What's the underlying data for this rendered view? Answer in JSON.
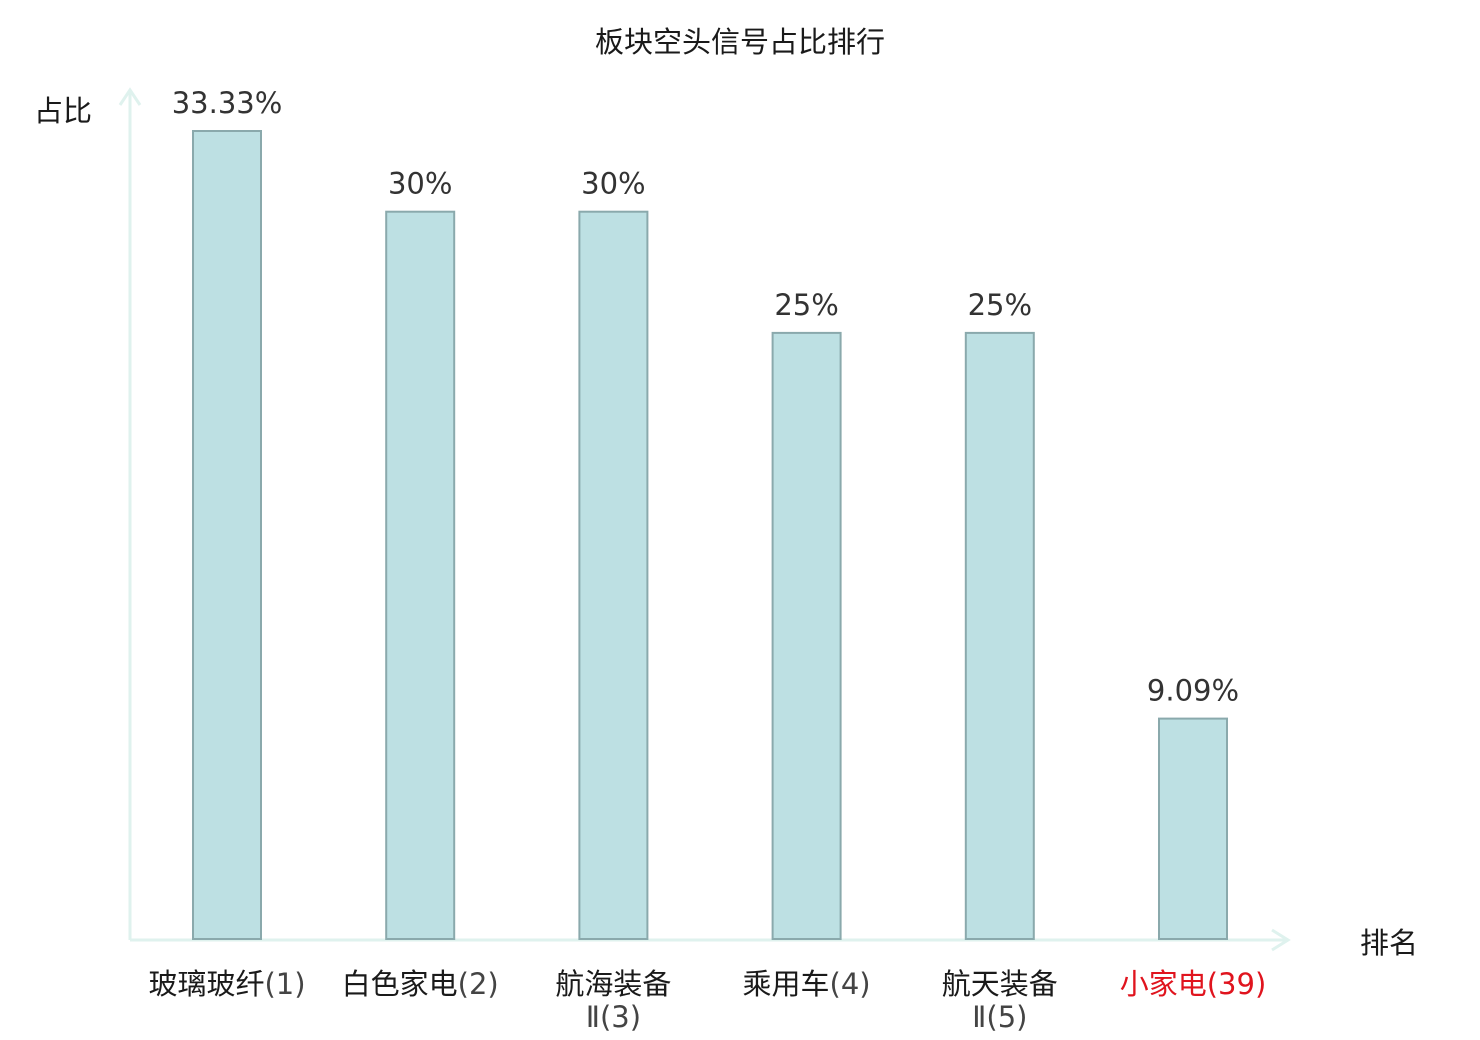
{
  "chart_data": {
    "type": "bar",
    "title": "板块空头信号占比排行",
    "ylabel": "占比",
    "xlabel": "排名",
    "ylim": [
      0,
      33.33
    ],
    "categories": [
      {
        "name": "玻璃玻纤",
        "rank": "(1)",
        "highlight": false
      },
      {
        "name": "白色家电",
        "rank": "(2)",
        "highlight": false
      },
      {
        "name": "航海装备",
        "rank": "Ⅱ(3)",
        "highlight": false
      },
      {
        "name": "乘用车",
        "rank": "(4)",
        "highlight": false
      },
      {
        "name": "航天装备",
        "rank": "Ⅱ(5)",
        "highlight": false
      },
      {
        "name": "小家电",
        "rank": "(39)",
        "highlight": true
      }
    ],
    "values": [
      33.33,
      30,
      30,
      25,
      25,
      9.09
    ],
    "value_labels": [
      "33.33%",
      "30%",
      "30%",
      "25%",
      "25%",
      "9.09%"
    ],
    "colors": {
      "bar_fill": "#bde0e3",
      "bar_stroke": "#8aa9ac",
      "axis": "#dff2ee",
      "highlight_text": "#e0141e"
    },
    "grid": false,
    "legend": "none"
  }
}
